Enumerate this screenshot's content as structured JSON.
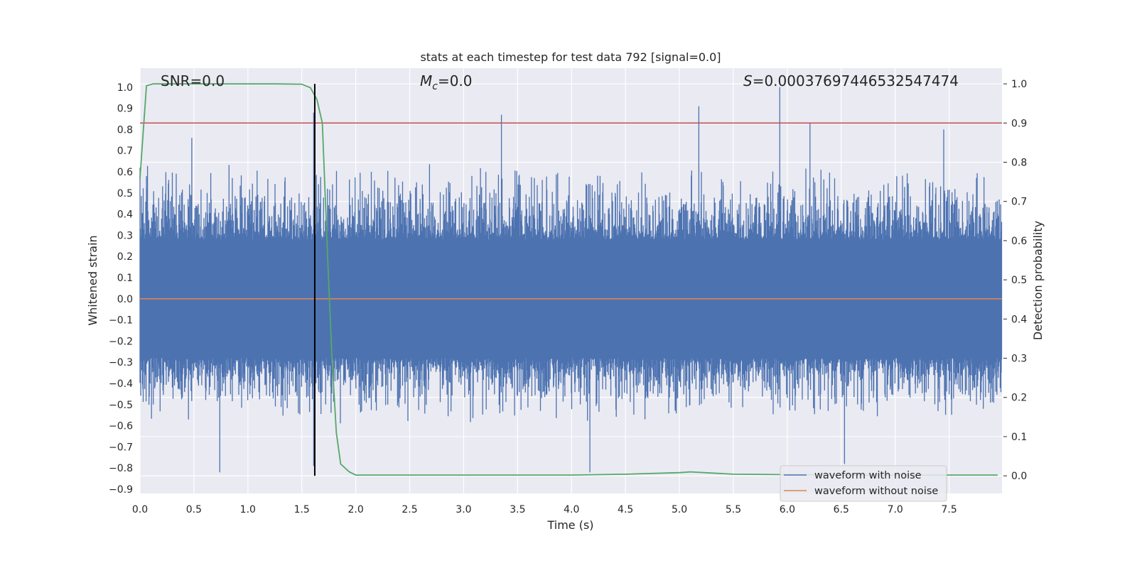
{
  "chart_data": {
    "type": "line",
    "title": "stats at each timestep for test data 792 [signal=0.0]",
    "xlabel": "Time (s)",
    "ylabel_left": "Whitened strain",
    "ylabel_right": "Detection probability",
    "xlim": [
      0.0,
      7.99
    ],
    "ylim_left": [
      -0.92,
      1.09
    ],
    "ylim_right": [
      -0.045,
      1.04
    ],
    "x_ticks": [
      "0.0",
      "0.5",
      "1.0",
      "1.5",
      "2.0",
      "2.5",
      "3.0",
      "3.5",
      "4.0",
      "4.5",
      "5.0",
      "5.5",
      "6.0",
      "6.5",
      "7.0",
      "7.5"
    ],
    "x_tick_values": [
      0.0,
      0.5,
      1.0,
      1.5,
      2.0,
      2.5,
      3.0,
      3.5,
      4.0,
      4.5,
      5.0,
      5.5,
      6.0,
      6.5,
      7.0,
      7.5
    ],
    "y_left_ticks": [
      "1.0",
      "0.9",
      "0.8",
      "0.7",
      "0.6",
      "0.5",
      "0.4",
      "0.3",
      "0.2",
      "0.1",
      "0.0",
      "−0.1",
      "−0.2",
      "−0.3",
      "−0.4",
      "−0.5",
      "−0.6",
      "−0.7",
      "−0.8",
      "−0.9"
    ],
    "y_left_tick_values": [
      1.0,
      0.9,
      0.8,
      0.7,
      0.6,
      0.5,
      0.4,
      0.3,
      0.2,
      0.1,
      0.0,
      -0.1,
      -0.2,
      -0.3,
      -0.4,
      -0.5,
      -0.6,
      -0.7,
      -0.8,
      -0.9
    ],
    "y_right_ticks": [
      "1.0",
      "0.9",
      "0.8",
      "0.7",
      "0.6",
      "0.5",
      "0.4",
      "0.3",
      "0.2",
      "0.1",
      "0.0"
    ],
    "y_right_tick_values": [
      1.0,
      0.9,
      0.8,
      0.7,
      0.6,
      0.5,
      0.4,
      0.3,
      0.2,
      0.1,
      0.0
    ],
    "annotations": {
      "snr": "SNR=0.0",
      "mc_symbol": "M",
      "mc_subscript": "c",
      "mc_value": "=0.0",
      "s_symbol": "S",
      "s_value": "=0.00037697446532547474"
    },
    "series": [
      {
        "name": "waveform with noise",
        "color": "#4c72b0",
        "axis": "left",
        "noise_envelope": {
          "core_band": [
            -0.28,
            0.28
          ],
          "typical_peaks": [
            -0.6,
            0.65
          ]
        },
        "spikes": [
          {
            "x": 0.48,
            "y": 0.76
          },
          {
            "x": 0.74,
            "y": -0.82
          },
          {
            "x": 1.61,
            "y": 0.88
          },
          {
            "x": 1.61,
            "y": -0.79
          },
          {
            "x": 3.35,
            "y": 0.87
          },
          {
            "x": 4.17,
            "y": -0.82
          },
          {
            "x": 5.18,
            "y": 0.91
          },
          {
            "x": 5.93,
            "y": 1.0
          },
          {
            "x": 6.21,
            "y": 0.83
          },
          {
            "x": 6.53,
            "y": -0.78
          },
          {
            "x": 7.45,
            "y": 0.8
          }
        ]
      },
      {
        "name": "waveform without noise",
        "color": "#dd8452",
        "axis": "left",
        "x": [
          0.0,
          7.99
        ],
        "y": [
          0.0,
          0.0
        ]
      },
      {
        "color": "#55a868",
        "axis": "right",
        "x": [
          0.0,
          0.06,
          0.12,
          0.25,
          0.5,
          0.75,
          1.0,
          1.25,
          1.5,
          1.58,
          1.64,
          1.69,
          1.74,
          1.78,
          1.82,
          1.86,
          1.94,
          2.0,
          2.25,
          2.5,
          3.0,
          3.5,
          4.0,
          4.5,
          5.0,
          5.1,
          5.5,
          6.0,
          6.5,
          7.0,
          7.5,
          7.95
        ],
        "y": [
          0.76,
          0.995,
          1.0,
          1.0,
          1.0,
          1.0,
          1.0,
          1.0,
          0.999,
          0.99,
          0.96,
          0.9,
          0.55,
          0.3,
          0.11,
          0.03,
          0.01,
          0.002,
          0.002,
          0.002,
          0.002,
          0.002,
          0.002,
          0.004,
          0.008,
          0.01,
          0.004,
          0.003,
          0.002,
          0.002,
          0.002,
          0.002
        ]
      }
    ],
    "threshold": {
      "axis": "right",
      "value": 0.9,
      "color": "#c44e52"
    },
    "vline": {
      "x": 1.62,
      "ymin_right": 0.0,
      "ymax_right": 1.0,
      "color": "#000000"
    },
    "legend": {
      "placement": "lower right",
      "entries": [
        "waveform with noise",
        "waveform without noise"
      ]
    }
  }
}
